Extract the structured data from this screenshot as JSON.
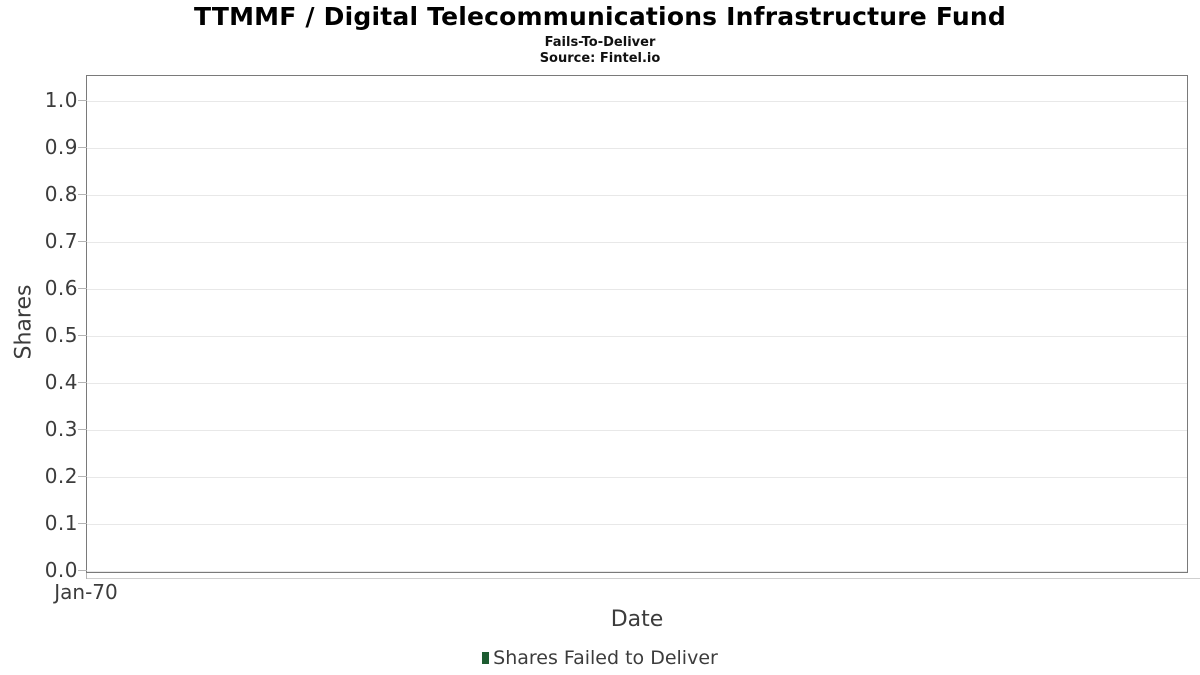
{
  "chart_data": {
    "type": "bar",
    "title": "TTMMF / Digital Telecommunications Infrastructure Fund",
    "subtitle": "Fails-To-Deliver",
    "source": "Source: Fintel.io",
    "xlabel": "Date",
    "ylabel": "Shares",
    "x_tick_labels": [
      "Jan-70"
    ],
    "y_tick_labels": [
      "0.0",
      "0.1",
      "0.2",
      "0.3",
      "0.4",
      "0.5",
      "0.6",
      "0.7",
      "0.8",
      "0.9",
      "1.0"
    ],
    "ylim": [
      0,
      1.05
    ],
    "grid": true,
    "legend": {
      "position": "bottom",
      "entries": [
        {
          "label": "Shares Failed to Deliver",
          "color": "#1d5c31"
        }
      ]
    },
    "series": [
      {
        "name": "Shares Failed to Deliver",
        "x": [],
        "values": []
      }
    ]
  },
  "colors": {
    "background": "#ffffff",
    "plot_border": "#7a7a7a",
    "gridline": "#e8e8e8",
    "tick_mark": "#b4b4b4",
    "axis_line": "#cfcfcf",
    "text": "#3c3c3c",
    "title_text": "#000000",
    "legend_marker": "#1d5c31"
  }
}
